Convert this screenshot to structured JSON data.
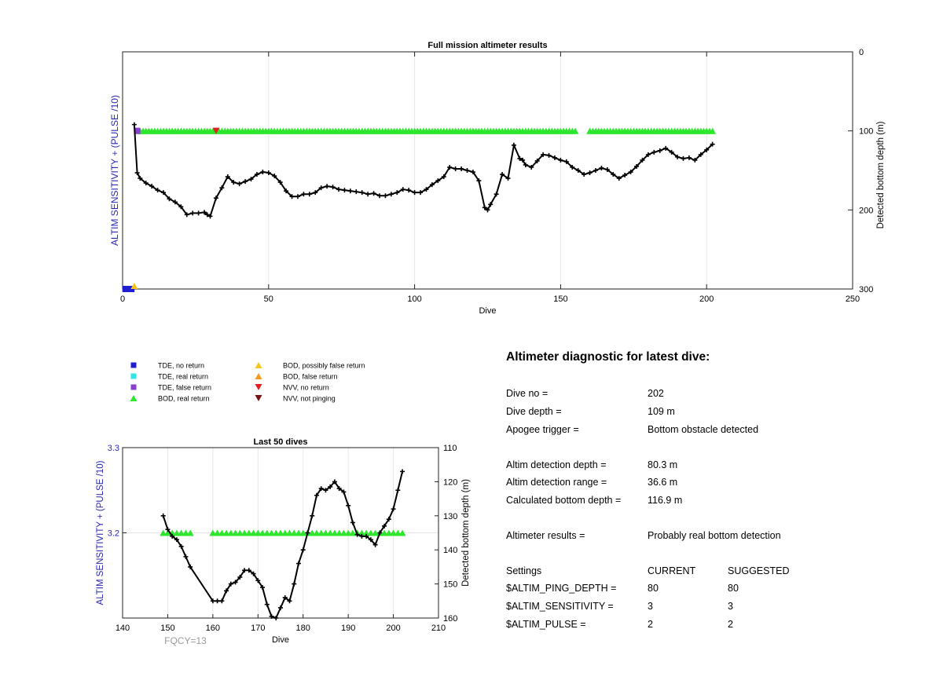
{
  "colors": {
    "bod_real": "#2ee62e",
    "tde_no_return": "#1f1fd1",
    "tde_real": "#2ee6e6",
    "tde_false": "#8a3fd1",
    "bod_possibly_false": "#f5c518",
    "bod_false": "#f59a1a",
    "nvv_no_return": "#e02020",
    "nvv_not_pinging": "#7a1010",
    "axis_left_label": "#2828b4",
    "fqcy": "#9a9a9a"
  },
  "legend": [
    {
      "label": "TDE, no return",
      "marker": "square",
      "color": "#1f1fd1"
    },
    {
      "label": "TDE, real return",
      "marker": "square",
      "color": "#2ee6e6"
    },
    {
      "label": "TDE, false return",
      "marker": "square",
      "color": "#8a3fd1"
    },
    {
      "label": "BOD, real return",
      "marker": "triangle-up",
      "color": "#2ee62e"
    },
    {
      "label": "BOD, possibly false return",
      "marker": "triangle-up",
      "color": "#f5c518"
    },
    {
      "label": "BOD, false return",
      "marker": "triangle-up",
      "color": "#f59a1a"
    },
    {
      "label": "NVV, no return",
      "marker": "triangle-down",
      "color": "#e02020"
    },
    {
      "label": "NVV, not pinging",
      "marker": "triangle-down",
      "color": "#7a1010"
    }
  ],
  "chart_data": [
    {
      "type": "line",
      "title": "Full mission altimeter results",
      "xlabel": "Dive",
      "ylabel_left": "ALTIM SENSITIVITY + (PULSE /10)",
      "ylabel_right": "Detected bottom depth (m)",
      "xlim": [
        0,
        250
      ],
      "xticks": [
        0,
        50,
        100,
        150,
        200,
        250
      ],
      "ylim_right": [
        0,
        300
      ],
      "yticks_right": [
        0,
        100,
        200,
        300
      ],
      "y_right_inverted": true,
      "grid": "vertical",
      "bottom_depth_series": {
        "name": "Detected bottom depth",
        "x": [
          4,
          5,
          6,
          8,
          10,
          12,
          14,
          16,
          18,
          20,
          22,
          24,
          26,
          28,
          29,
          30,
          32,
          34,
          36,
          38,
          40,
          42,
          44,
          46,
          48,
          50,
          52,
          54,
          56,
          58,
          60,
          62,
          64,
          66,
          68,
          70,
          72,
          74,
          76,
          78,
          80,
          82,
          84,
          86,
          88,
          90,
          92,
          94,
          96,
          98,
          100,
          102,
          104,
          106,
          108,
          110,
          112,
          114,
          116,
          118,
          120,
          122,
          124,
          125,
          126,
          128,
          130,
          132,
          134,
          136,
          137,
          138,
          140,
          142,
          144,
          146,
          148,
          150,
          152,
          154,
          156,
          158,
          160,
          162,
          164,
          166,
          168,
          170,
          172,
          174,
          176,
          178,
          180,
          182,
          184,
          186,
          188,
          190,
          192,
          194,
          196,
          198,
          200,
          202
        ],
        "y": [
          92,
          153,
          160,
          166,
          170,
          175,
          178,
          186,
          190,
          196,
          206,
          204,
          204,
          203,
          206,
          208,
          185,
          172,
          158,
          165,
          167,
          164,
          161,
          155,
          152,
          153,
          157,
          165,
          176,
          183,
          183,
          180,
          180,
          178,
          172,
          170,
          171,
          174,
          175,
          176,
          177,
          178,
          180,
          179,
          182,
          182,
          180,
          178,
          174,
          175,
          178,
          178,
          174,
          168,
          163,
          158,
          146,
          148,
          148,
          150,
          152,
          163,
          197,
          200,
          193,
          180,
          155,
          160,
          118,
          135,
          137,
          143,
          146,
          138,
          130,
          131,
          134,
          137,
          139,
          146,
          150,
          155,
          153,
          150,
          147,
          149,
          155,
          160,
          156,
          152,
          145,
          137,
          130,
          127,
          125,
          122,
          127,
          133,
          135,
          134,
          137,
          130,
          124,
          116.9
        ]
      },
      "bod_real_returns": {
        "value": 100,
        "dive_ranges": [
          [
            6,
            155
          ],
          [
            160,
            202
          ]
        ]
      },
      "markers": [
        {
          "kind": "TDE, no return",
          "x": [
            1,
            2,
            3
          ],
          "y": 300
        },
        {
          "kind": "BOD, possibly false return",
          "x": [
            4
          ],
          "y": 300
        },
        {
          "kind": "TDE, false return",
          "x": [
            5
          ],
          "y": 100
        },
        {
          "kind": "NVV, no return",
          "x": [
            32
          ],
          "y": 100
        }
      ]
    },
    {
      "type": "line",
      "title": "Last 50 dives",
      "xlabel": "Dive",
      "ylabel_left": "ALTIM SENSITIVITY + (PULSE /10)",
      "ylabel_right": "Detected bottom depth (m)",
      "xlim": [
        140,
        210
      ],
      "xticks": [
        140,
        150,
        160,
        170,
        180,
        190,
        200,
        210
      ],
      "ylim_left": [
        3.1,
        3.3
      ],
      "yticks_left": [
        3.2,
        3.3
      ],
      "ylim_right": [
        110,
        160
      ],
      "yticks_right": [
        110,
        120,
        130,
        140,
        150,
        160
      ],
      "y_right_inverted": true,
      "grid": "vertical+horizontal",
      "bottom_depth_series": {
        "name": "Detected bottom depth",
        "x": [
          149,
          150,
          151,
          152,
          153,
          154,
          155,
          160,
          161,
          162,
          163,
          164,
          165,
          166,
          167,
          168,
          169,
          170,
          171,
          172,
          173,
          174,
          175,
          176,
          177,
          178,
          179,
          180,
          181,
          182,
          183,
          184,
          185,
          186,
          187,
          188,
          189,
          190,
          191,
          192,
          193,
          194,
          195,
          196,
          197,
          198,
          199,
          200,
          201,
          202
        ],
        "y": [
          130,
          134,
          136,
          137,
          139,
          142,
          145,
          155,
          155,
          155,
          152,
          150,
          149.5,
          148,
          146,
          146,
          147,
          149,
          151,
          156,
          159.5,
          160,
          157,
          154,
          155,
          150,
          144,
          140,
          135,
          130,
          124,
          122,
          122.5,
          121.5,
          120,
          122,
          123,
          127,
          132,
          135.5,
          136,
          136,
          137,
          138.5,
          135,
          133,
          131,
          128,
          122.5,
          117
        ]
      },
      "bod_real_returns": {
        "value": 3.2,
        "dives": [
          149,
          150,
          151,
          152,
          153,
          154,
          155,
          160,
          161,
          162,
          163,
          164,
          165,
          166,
          167,
          168,
          169,
          170,
          171,
          172,
          173,
          174,
          175,
          176,
          177,
          178,
          179,
          180,
          181,
          182,
          183,
          184,
          185,
          186,
          187,
          188,
          189,
          190,
          191,
          192,
          193,
          194,
          195,
          196,
          197,
          198,
          199,
          200,
          201,
          202
        ]
      },
      "annotation": "FQCY=13"
    }
  ],
  "diagnostic": {
    "title": "Altimeter diagnostic for latest dive:",
    "rows": [
      {
        "label": "Dive no =",
        "value": "202"
      },
      {
        "label": "Dive depth =",
        "value": "109 m"
      },
      {
        "label": "Apogee trigger =",
        "value": "Bottom obstacle detected"
      },
      {
        "label": "Altim detection depth =",
        "value": "80.3 m"
      },
      {
        "label": "Altim detection range =",
        "value": "36.6 m"
      },
      {
        "label": "Calculated bottom depth =",
        "value": "116.9 m"
      },
      {
        "label": "Altimeter results =",
        "value": "Probably real bottom detection"
      }
    ],
    "settings_header": {
      "label": "Settings",
      "current": "CURRENT",
      "suggested": "SUGGESTED"
    },
    "settings": [
      {
        "label": "$ALTIM_PING_DEPTH =",
        "current": "80",
        "suggested": "80"
      },
      {
        "label": "$ALTIM_SENSITIVITY =",
        "current": "3",
        "suggested": "3"
      },
      {
        "label": "$ALTIM_PULSE =",
        "current": "2",
        "suggested": "2"
      }
    ]
  }
}
